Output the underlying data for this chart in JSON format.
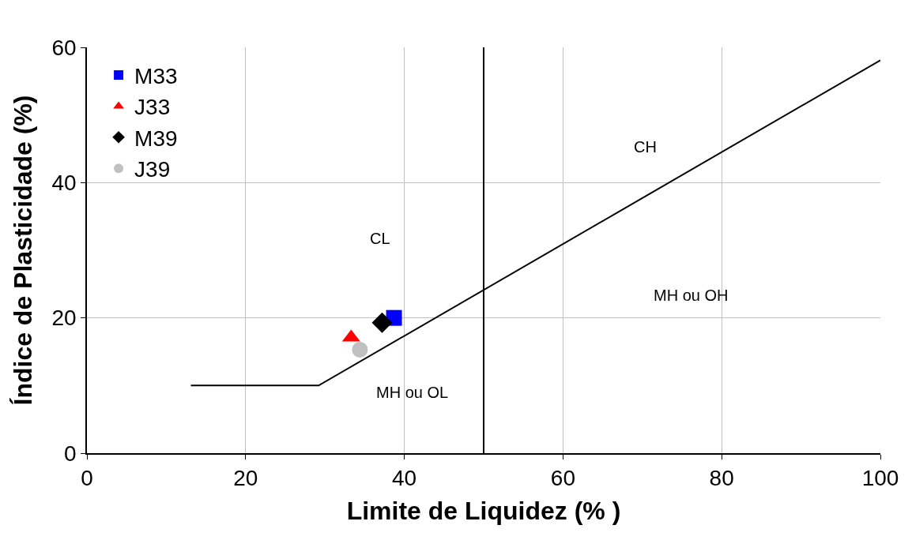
{
  "chart_data": {
    "type": "scatter",
    "xlabel": "Limite de Liquidez (% )",
    "ylabel": "Índice de Plasticidade (%)",
    "xlim": [
      0,
      100
    ],
    "xticks": [
      0,
      20,
      40,
      60,
      80,
      100
    ],
    "ylim": [
      0,
      60
    ],
    "yticks": [
      0,
      20,
      40,
      60
    ],
    "grid": true,
    "legend": "top left",
    "series": [
      {
        "name": "M33",
        "color": "#0000ff",
        "marker": "square",
        "x": [
          38.7
        ],
        "values": [
          20.0
        ]
      },
      {
        "name": "J33",
        "color": "#ff0000",
        "marker": "triangle",
        "x": [
          33.3
        ],
        "values": [
          17.1
        ]
      },
      {
        "name": "M39",
        "color": "#000000",
        "marker": "diamond",
        "x": [
          37.2
        ],
        "values": [
          19.3
        ]
      },
      {
        "name": "J39",
        "color": "#c0c0c0",
        "marker": "circle",
        "x": [
          34.4
        ],
        "values": [
          15.3
        ]
      },
      {
        "type": "line",
        "color": "#000000",
        "marker": "none",
        "x": [
          13.1,
          29.2,
          100
        ],
        "values": [
          10,
          10,
          58.1
        ]
      },
      {
        "type": "line",
        "color": "#000000",
        "marker": "none",
        "x": [
          50,
          50
        ],
        "values": [
          0,
          60
        ]
      }
    ],
    "annotations": [
      "CH",
      "CL",
      "MH ou OH",
      "MH ou OL"
    ]
  }
}
